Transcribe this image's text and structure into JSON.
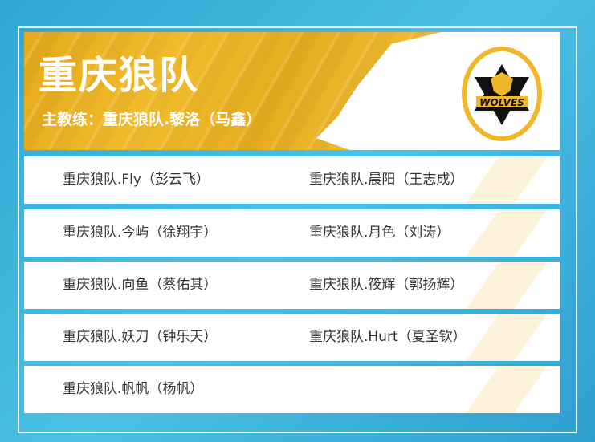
{
  "team": {
    "name": "重庆狼队",
    "coach": "主教练：重庆狼队.黎洛（马鑫）",
    "logo_text": "WOLVES",
    "accent": "#f2b62a"
  },
  "players": [
    [
      "重庆狼队.Fly（彭云飞）",
      "重庆狼队.晨阳（王志成）"
    ],
    [
      "重庆狼队.今屿（徐翔宇）",
      "重庆狼队.月色（刘涛）"
    ],
    [
      "重庆狼队.向鱼（蔡佑其）",
      "重庆狼队.筱辉（郭扬辉）"
    ],
    [
      "重庆狼队.妖刀（钟乐天）",
      "重庆狼队.Hurt（夏圣钦）"
    ],
    [
      "重庆狼队.帆帆（杨帆）",
      ""
    ]
  ]
}
